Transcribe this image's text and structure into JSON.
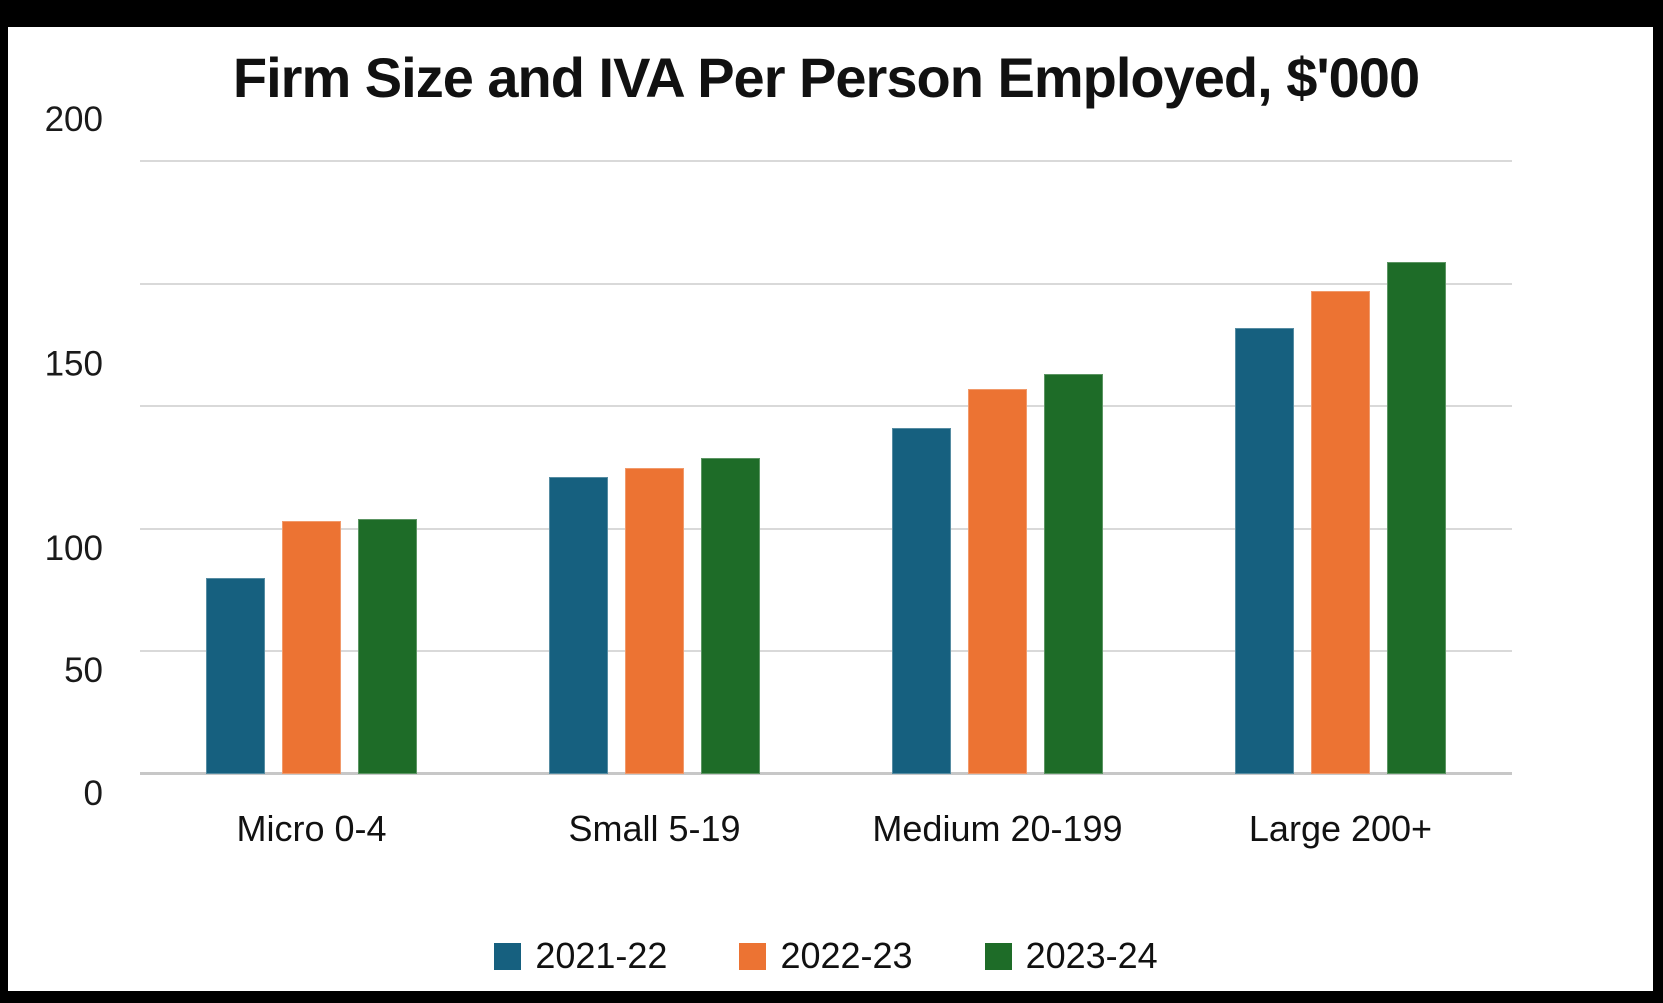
{
  "title": "Firm Size and IVA Per Person Employed, $'000",
  "colors": {
    "series_2021_22": "#16607F",
    "series_2022_23": "#EC7333",
    "series_2023_24": "#1E6C28",
    "gridline": "#D9D9D9",
    "frame": "#000000",
    "background": "#FFFFFF",
    "text": "#111111"
  },
  "chart_data": {
    "type": "bar",
    "title": "Firm Size and IVA Per Person Employed, $'000",
    "categories": [
      "Micro 0-4",
      "Small 5-19",
      "Medium 20-199",
      "Large 200+"
    ],
    "series": [
      {
        "name": "2021-22",
        "color": "#16607F",
        "values": [
          80,
          121,
          141,
          182
        ]
      },
      {
        "name": "2022-23",
        "color": "#EC7333",
        "values": [
          103,
          125,
          157,
          197
        ]
      },
      {
        "name": "2023-24",
        "color": "#1E6C28",
        "values": [
          104,
          129,
          163,
          209
        ]
      }
    ],
    "xlabel": "",
    "ylabel": "",
    "ylim": [
      0,
      250
    ],
    "yticks": [
      0,
      50,
      100,
      150,
      200,
      250
    ],
    "grid": true,
    "legend_position": "bottom"
  }
}
